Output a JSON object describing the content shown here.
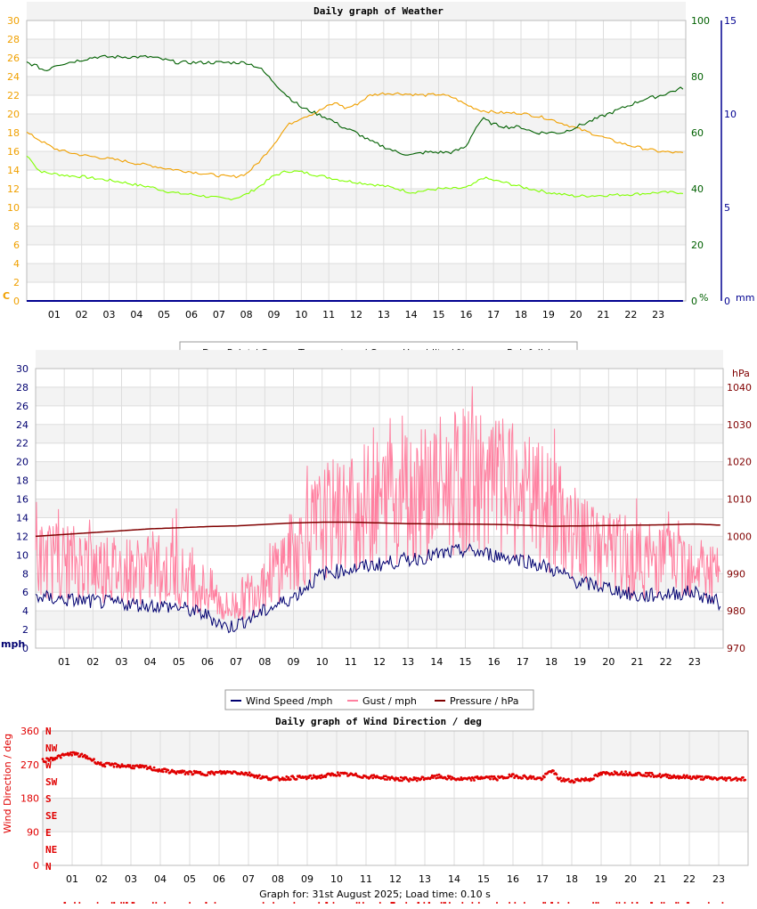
{
  "page": {
    "footer_text": "Graph for: 31st August 2025; Load time: 0.10 s"
  },
  "colors": {
    "dew": "#80ff00",
    "temp": "#f0a000",
    "humidity": "#006000",
    "rain": "#000090",
    "wind": "#000070",
    "gust": "#ff80a0",
    "pressure": "#800000",
    "winddir": "#e00000",
    "grid": "#dddddd",
    "band": "#f3f3f3"
  },
  "chart_data": [
    {
      "type": "line",
      "title": "Daily graph of Weather",
      "x_ticks": [
        "01",
        "02",
        "03",
        "04",
        "05",
        "06",
        "07",
        "08",
        "09",
        "10",
        "11",
        "12",
        "13",
        "14",
        "15",
        "16",
        "17",
        "18",
        "19",
        "20",
        "21",
        "22",
        "23"
      ],
      "x_range_hours": [
        0,
        24
      ],
      "left_axis": {
        "unit": "C",
        "ticks": [
          "0",
          "2",
          "4",
          "6",
          "8",
          "10",
          "12",
          "14",
          "16",
          "18",
          "20",
          "22",
          "24",
          "26",
          "28",
          "30"
        ],
        "range": [
          0,
          30
        ]
      },
      "right_axis_1": {
        "unit": "%",
        "ticks": [
          "0",
          "20",
          "40",
          "60",
          "80",
          "100"
        ],
        "range": [
          0,
          100
        ]
      },
      "right_axis_2": {
        "unit": "mm",
        "ticks": [
          "0",
          "5",
          "10",
          "15"
        ],
        "range": [
          0,
          15
        ]
      },
      "legend": [
        "Dew Point / C",
        "Temperature / C",
        "Humidity / %",
        "Rainfall / mm"
      ],
      "legend_position": "bottom",
      "grid": true,
      "series": [
        {
          "name": "Dew Point / C",
          "axis": "left",
          "x": [
            0,
            0.2,
            0.4,
            0.7,
            1,
            1.5,
            2,
            2.5,
            3,
            3.5,
            4,
            4.5,
            5,
            5.5,
            6,
            6.5,
            7,
            7.3,
            7.6,
            8,
            8.5,
            9,
            9.5,
            10,
            10.5,
            11,
            11.5,
            12,
            12.5,
            13,
            13.5,
            14,
            14.5,
            15,
            15.5,
            16,
            16.3,
            16.6,
            17,
            17.5,
            18,
            18.5,
            19,
            19.5,
            20,
            21,
            22,
            23,
            23.9
          ],
          "values": [
            15.5,
            15,
            14,
            13.7,
            13.6,
            13.4,
            13.3,
            13.1,
            12.9,
            12.7,
            12.4,
            12.2,
            11.8,
            11.5,
            11.4,
            11.2,
            11,
            10.9,
            11,
            11.4,
            12.3,
            13.4,
            13.9,
            13.8,
            13.5,
            13.2,
            12.9,
            12.7,
            12.5,
            12.3,
            12,
            11.6,
            11.8,
            12,
            12,
            12.1,
            12.5,
            13.2,
            12.9,
            12.6,
            12.2,
            11.9,
            11.6,
            11.4,
            11.2,
            11.3,
            11.4,
            11.6,
            11.6
          ]
        },
        {
          "name": "Temperature / C",
          "axis": "left",
          "x": [
            0,
            0.3,
            0.7,
            1,
            1.5,
            2,
            2.5,
            3,
            3.5,
            4,
            4.5,
            5,
            5.5,
            6,
            6.5,
            7,
            7.3,
            7.6,
            8,
            8.5,
            9,
            9.5,
            10,
            10.5,
            11,
            11.3,
            11.6,
            12,
            12.5,
            13,
            13.5,
            14,
            14.5,
            15,
            15.5,
            16,
            16.5,
            17,
            17.5,
            18,
            18.5,
            19,
            19.5,
            20,
            20.5,
            21,
            21.5,
            22,
            22.5,
            23,
            23.9
          ],
          "values": [
            18,
            17.5,
            16.8,
            16.3,
            15.9,
            15.6,
            15.4,
            15.2,
            15,
            14.7,
            14.5,
            14.2,
            14,
            13.8,
            13.6,
            13.4,
            13.3,
            13.3,
            13.6,
            15,
            16.8,
            18.8,
            19.6,
            20.1,
            20.9,
            21.2,
            20.6,
            21,
            22,
            22.2,
            22.2,
            22.1,
            22,
            22.1,
            21.8,
            21,
            20.4,
            20.2,
            20.1,
            20.1,
            19.8,
            19.5,
            19,
            18.5,
            18,
            17.5,
            17,
            16.6,
            16.3,
            16,
            15.8
          ]
        },
        {
          "name": "Humidity / %",
          "axis": "right_1",
          "x": [
            0,
            0.3,
            0.7,
            1,
            1.5,
            2,
            2.5,
            3,
            3.5,
            4,
            4.5,
            5,
            5.5,
            6,
            6.5,
            7,
            7.5,
            8,
            8.5,
            9,
            9.5,
            10,
            10.5,
            11,
            11.5,
            12,
            12.5,
            13,
            13.5,
            14,
            14.5,
            15,
            15.5,
            16,
            16.3,
            16.6,
            17,
            17.5,
            18,
            18.5,
            19,
            19.5,
            20,
            20.5,
            21,
            21.5,
            22,
            22.5,
            23,
            23.9
          ],
          "values": [
            85,
            84,
            82,
            84,
            85,
            86,
            87,
            87,
            87,
            87,
            87,
            86,
            85,
            85,
            85,
            85,
            85,
            85,
            83,
            78,
            73,
            69,
            67,
            65,
            62,
            60,
            57,
            55,
            53,
            52,
            53,
            53,
            53,
            55,
            61,
            65,
            63,
            62,
            62,
            60,
            60,
            60,
            62,
            64,
            66,
            68,
            70,
            72,
            73,
            76
          ]
        },
        {
          "name": "Rainfall / mm",
          "axis": "right_2",
          "x": [
            0,
            23.9
          ],
          "values": [
            0,
            0
          ]
        }
      ]
    },
    {
      "type": "line",
      "x_ticks": [
        "01",
        "02",
        "03",
        "04",
        "05",
        "06",
        "07",
        "08",
        "09",
        "10",
        "11",
        "12",
        "13",
        "14",
        "15",
        "16",
        "17",
        "18",
        "19",
        "20",
        "21",
        "22",
        "23"
      ],
      "x_range_hours": [
        0,
        24
      ],
      "left_axis": {
        "unit": "mph",
        "ticks": [
          "0",
          "2",
          "4",
          "6",
          "8",
          "10",
          "12",
          "14",
          "16",
          "18",
          "20",
          "22",
          "24",
          "26",
          "28",
          "30"
        ],
        "range": [
          0,
          30
        ]
      },
      "right_axis": {
        "unit": "hPa",
        "ticks": [
          "970",
          "980",
          "990",
          "1000",
          "1010",
          "1020",
          "1030",
          "1040"
        ],
        "range": [
          970,
          1045
        ]
      },
      "legend": [
        "Wind Speed /mph",
        "Gust / mph",
        "Pressure / hPa"
      ],
      "legend_position": "bottom",
      "grid": true,
      "series": [
        {
          "name": "Wind Speed /mph",
          "axis": "left",
          "x": [
            0,
            1,
            2,
            3,
            4,
            5,
            6,
            6.7,
            7,
            8,
            9,
            10,
            11,
            12,
            13,
            14,
            15,
            16,
            17,
            18,
            19,
            20,
            21,
            22,
            23,
            23.9
          ],
          "values": [
            5.5,
            5.2,
            5,
            4.8,
            4.6,
            4.4,
            3.5,
            2.2,
            2.5,
            4,
            5.5,
            8,
            8.5,
            9,
            9.5,
            10,
            10.5,
            10,
            9.5,
            8.5,
            7,
            6.5,
            5.5,
            5.8,
            6,
            4.8
          ]
        },
        {
          "name": "Gust / mph",
          "axis": "left",
          "x": [
            0,
            1,
            2,
            3,
            4,
            5,
            6,
            6.7,
            7,
            8,
            9,
            10,
            11,
            12,
            13,
            14,
            15,
            16,
            17,
            18,
            19,
            20,
            21,
            22,
            23,
            23.9
          ],
          "values": [
            9,
            9,
            8.5,
            8,
            8,
            7.5,
            6,
            4,
            4.5,
            7,
            10,
            13,
            14,
            15,
            16,
            16.5,
            17,
            16.5,
            15.5,
            14,
            11,
            10,
            9,
            9,
            9,
            7
          ]
        },
        {
          "name": "Pressure / hPa",
          "axis": "right",
          "x": [
            0,
            1,
            2,
            3,
            4,
            5,
            6,
            7,
            8,
            9,
            10,
            11,
            12,
            13,
            14,
            15,
            16,
            17,
            18,
            19,
            20,
            21,
            22,
            23,
            23.9
          ],
          "values": [
            1000,
            1000.5,
            1001,
            1001.5,
            1002,
            1002.3,
            1002.6,
            1002.8,
            1003.2,
            1003.6,
            1003.8,
            1003.8,
            1003.6,
            1003.4,
            1003.3,
            1003.3,
            1003.2,
            1003,
            1002.7,
            1002.8,
            1002.9,
            1003,
            1003.1,
            1003.3,
            1003
          ]
        }
      ]
    },
    {
      "type": "scatter",
      "title": "Daily graph of Wind Direction / deg",
      "x_ticks": [
        "01",
        "02",
        "03",
        "04",
        "05",
        "06",
        "07",
        "08",
        "09",
        "10",
        "11",
        "12",
        "13",
        "14",
        "15",
        "16",
        "17",
        "18",
        "19",
        "20",
        "21",
        "22",
        "23"
      ],
      "x_range_hours": [
        0,
        24
      ],
      "ylabel": "Wind Direction / deg",
      "y_ticks": [
        "0",
        "90",
        "180",
        "270",
        "360"
      ],
      "y_range": [
        0,
        360
      ],
      "compass_labels": [
        "N",
        "NW",
        "W",
        "SW",
        "S",
        "SE",
        "E",
        "NE",
        "N"
      ],
      "grid": true,
      "series": [
        {
          "name": "direction",
          "x": [
            0,
            0.5,
            1,
            1.5,
            2,
            2.5,
            3,
            3.5,
            4,
            4.5,
            5,
            5.5,
            6,
            6.5,
            7,
            7.5,
            8,
            8.5,
            9,
            9.5,
            10,
            10.5,
            11,
            11.5,
            12,
            12.5,
            13,
            13.5,
            14,
            14.5,
            15,
            15.5,
            16,
            16.5,
            17,
            17.3,
            17.6,
            18,
            18.3,
            18.6,
            19,
            19.5,
            20,
            20.5,
            21,
            21.5,
            22,
            22.5,
            23,
            23.9
          ],
          "values": [
            280,
            290,
            300,
            290,
            270,
            268,
            265,
            262,
            255,
            250,
            248,
            246,
            248,
            250,
            245,
            235,
            232,
            235,
            235,
            238,
            245,
            242,
            238,
            236,
            232,
            230,
            233,
            238,
            232,
            230,
            236,
            233,
            240,
            236,
            232,
            255,
            230,
            226,
            230,
            230,
            245,
            248,
            246,
            244,
            240,
            238,
            236,
            234,
            232,
            232
          ]
        }
      ]
    }
  ]
}
